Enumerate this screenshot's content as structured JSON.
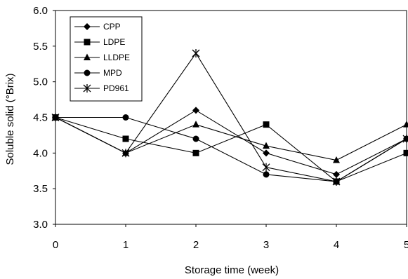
{
  "chart_data": {
    "type": "line",
    "title": "",
    "xlabel": "Storage time (week)",
    "ylabel": "Soluble solid (°Brix)",
    "x": [
      0,
      1,
      2,
      3,
      4,
      5
    ],
    "xlim": [
      0,
      5
    ],
    "ylim": [
      3.0,
      6.0
    ],
    "yticks": [
      "3.0",
      "3.5",
      "4.0",
      "4.5",
      "5.0",
      "5.5",
      "6.0"
    ],
    "xticks": [
      "0",
      "1",
      "2",
      "3",
      "4",
      "5"
    ],
    "grid": false,
    "legend_position": "top-left",
    "series": [
      {
        "name": "CPP",
        "marker": "diamond",
        "values": [
          4.5,
          4.0,
          4.6,
          4.0,
          3.7,
          4.2
        ]
      },
      {
        "name": "LDPE",
        "marker": "square",
        "values": [
          4.5,
          4.2,
          4.0,
          4.4,
          3.6,
          4.0
        ]
      },
      {
        "name": "LLDPE",
        "marker": "triangle",
        "values": [
          4.5,
          4.0,
          4.4,
          4.1,
          3.9,
          4.4
        ]
      },
      {
        "name": "MPD",
        "marker": "circle",
        "values": [
          4.5,
          4.5,
          4.2,
          3.7,
          3.6,
          4.2
        ]
      },
      {
        "name": "PD961",
        "marker": "star",
        "values": [
          4.5,
          4.0,
          5.4,
          3.8,
          3.6,
          4.2
        ]
      }
    ]
  }
}
